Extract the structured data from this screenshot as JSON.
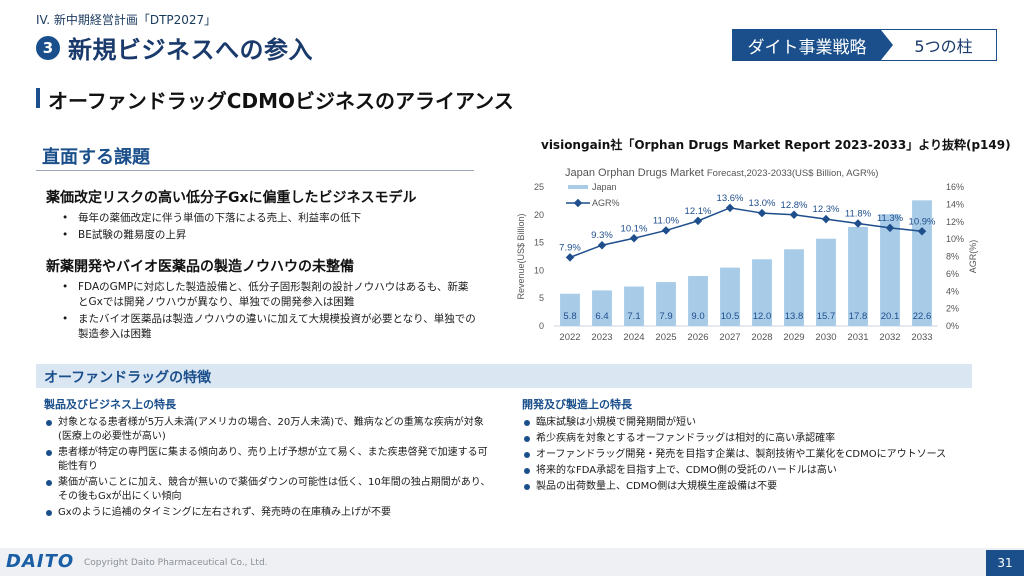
{
  "header": {
    "section_label": "IV. 新中期経営計画「DTP2027」",
    "number": "3",
    "title": "新規ビジネスへの参入",
    "tag_left": "ダイト事業戦略",
    "tag_right": "5つの柱"
  },
  "subtitle": "オーファンドラッグCDMOビジネスのアライアンス",
  "issues": {
    "heading": "直面する課題",
    "blocks": [
      {
        "title": "薬価改定リスクの高い低分子Gxに偏重したビジネスモデル",
        "items": [
          "毎年の薬価改定に伴う単価の下落による売上、利益率の低下",
          "BE試験の難易度の上昇"
        ]
      },
      {
        "title": "新薬開発やバイオ医薬品の製造ノウハウの未整備",
        "items": [
          "FDAのGMPに対応した製造設備と、低分子固形製剤の設計ノウハウはあるも、新薬とGxでは開発ノウハウが異なり、単独での開発参入は困難",
          "またバイオ医薬品は製造ノウハウの違いに加えて大規模投資が必要となり、単独での製造参入は困難"
        ]
      }
    ]
  },
  "chart_caption": "visiongain社「Orphan Drugs Market Report 2023-2033」より抜粋(p149)",
  "chart_data": {
    "type": "bar",
    "title": "Japan Orphan Drugs Market",
    "subtitle": "Forecast,2023-2033(US$ Billion, AGR%)",
    "categories": [
      "2022",
      "2023",
      "2024",
      "2025",
      "2026",
      "2027",
      "2028",
      "2029",
      "2030",
      "2031",
      "2032",
      "2033"
    ],
    "series": [
      {
        "name": "Japan",
        "type": "bar",
        "axis": "left",
        "values": [
          5.8,
          6.4,
          7.1,
          7.9,
          9.0,
          10.5,
          12.0,
          13.8,
          15.7,
          17.8,
          20.1,
          22.6
        ],
        "labels": [
          "5.8",
          "6.4",
          "7.1",
          "7.9",
          "9.0",
          "10.5",
          "12.0",
          "13.8",
          "15.7",
          "17.8",
          "20.1",
          "22.6"
        ]
      },
      {
        "name": "AGR%",
        "type": "line",
        "axis": "right",
        "values": [
          7.9,
          9.3,
          10.1,
          11.0,
          12.1,
          13.6,
          13.0,
          12.8,
          12.3,
          11.8,
          11.3,
          10.9
        ],
        "labels": [
          "7.9%",
          "9.3%",
          "10.1%",
          "11.0%",
          "12.1%",
          "13.6%",
          "13.0%",
          "12.8%",
          "12.3%",
          "11.8%",
          "11.3%",
          "10.9%"
        ]
      }
    ],
    "ylabel": "Revenue(US$ Billion)",
    "y2label": "AGR(%)",
    "ylim": [
      0,
      25
    ],
    "yticks": [
      "0",
      "5",
      "10",
      "15",
      "20",
      "25"
    ],
    "y2lim": [
      0,
      16
    ],
    "y2ticks": [
      "0%",
      "2%",
      "4%",
      "6%",
      "8%",
      "10%",
      "12%",
      "14%",
      "16%"
    ],
    "legend": "top-left",
    "colors": {
      "bar": "#a8cbe8",
      "line": "#1f4e8c",
      "label": "#1f4e8c"
    }
  },
  "features": {
    "heading": "オーファンドラッグの特徴",
    "left": {
      "heading": "製品及びビジネス上の特長",
      "items": [
        "対象となる患者様が5万人未満(アメリカの場合、20万人未満)で、難病などの重篤な疾病が対象(医療上の必要性が高い)",
        "患者様が特定の専門医に集まる傾向あり、売り上げ予想が立て易く、また疾患啓発で加速する可能性有り",
        "薬価が高いことに加え、競合が無いので薬価ダウンの可能性は低く、10年間の独占期間があり、その後もGxが出にくい傾向",
        "Gxのように追補のタイミングに左右されず、発売時の在庫積み上げが不要"
      ]
    },
    "right": {
      "heading": "開発及び製造上の特長",
      "items": [
        "臨床試験は小規模で開発期間が短い",
        "希少疾病を対象とするオーファンドラッグは相対的に高い承認確率",
        "オーファンドラッグ開発・発売を目指す企業は、製剤技術や工業化をCDMOにアウトソース",
        "将来的なFDA承認を目指す上で、CDMO側の受託のハードルは高い",
        "製品の出荷数量上、CDMO側は大規模生産設備は不要"
      ]
    }
  },
  "footer": {
    "logo": "DAITO",
    "copyright": "Copyright Daito Pharmaceutical Co., Ltd.",
    "page": "31"
  }
}
